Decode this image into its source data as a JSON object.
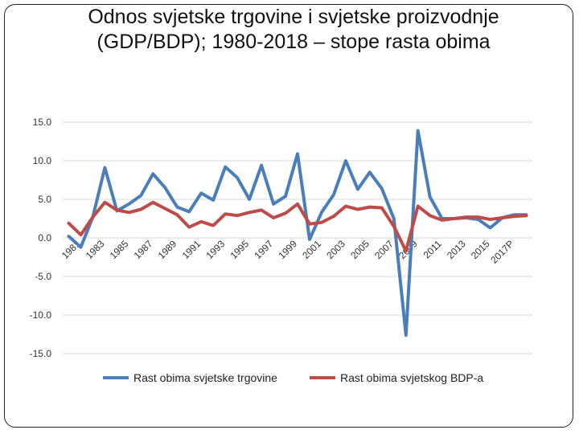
{
  "title": "Odnos svjetske trgovine i svjetske proizvodnje (GDP/BDP); 1980-2018 – stope rasta obima",
  "chart_data": {
    "type": "line",
    "title": "Odnos svjetske trgovine i svjetske proizvodnje (GDP/BDP); 1980-2018 – stope rasta obima",
    "xlabel": "",
    "ylabel": "",
    "ylim": [
      -15,
      15
    ],
    "yticks": [
      "15.0",
      "10.0",
      "5.0",
      "0.0",
      "-5.0",
      "-10.0",
      "-15.0"
    ],
    "grid": true,
    "legend": "bottom",
    "x_tick_labels": [
      "1981",
      "1983",
      "1985",
      "1987",
      "1989",
      "1991",
      "1993",
      "1995",
      "1997",
      "1999",
      "2001",
      "2003",
      "2005",
      "2007",
      "2009",
      "2011",
      "2013",
      "2015",
      "2017P"
    ],
    "categories": [
      "1980",
      "1981",
      "1982",
      "1983",
      "1984",
      "1985",
      "1986",
      "1987",
      "1988",
      "1989",
      "1990",
      "1991",
      "1992",
      "1993",
      "1994",
      "1995",
      "1996",
      "1997",
      "1998",
      "1999",
      "2000",
      "2001",
      "2002",
      "2003",
      "2004",
      "2005",
      "2006",
      "2007",
      "2008",
      "2009",
      "2010",
      "2011",
      "2012",
      "2013",
      "2014",
      "2015",
      "2016",
      "2017P",
      "2018"
    ],
    "series": [
      {
        "name": "Rast obima svjetske trgovine",
        "color": "#4a7ebb",
        "values": [
          0.2,
          -1.2,
          2.7,
          9.1,
          3.5,
          4.4,
          5.5,
          8.3,
          6.5,
          4.0,
          3.4,
          5.8,
          4.9,
          9.2,
          7.8,
          5.0,
          9.4,
          4.4,
          5.4,
          10.9,
          -0.2,
          3.3,
          5.6,
          10.0,
          6.3,
          8.5,
          6.4,
          2.5,
          -12.6,
          13.9,
          5.3,
          2.5,
          2.5,
          2.6,
          2.4,
          1.3,
          2.6,
          3.0,
          3.0
        ]
      },
      {
        "name": "Rast obima svjetskog BDP-a",
        "color": "#be4b48",
        "values": [
          1.9,
          0.4,
          2.7,
          4.6,
          3.6,
          3.3,
          3.7,
          4.6,
          3.8,
          3.0,
          1.4,
          2.1,
          1.6,
          3.1,
          2.9,
          3.3,
          3.6,
          2.6,
          3.2,
          4.4,
          1.8,
          2.0,
          2.8,
          4.1,
          3.7,
          4.0,
          3.9,
          1.5,
          -1.7,
          4.1,
          2.9,
          2.3,
          2.5,
          2.7,
          2.7,
          2.4,
          2.6,
          2.8,
          2.9
        ]
      }
    ]
  }
}
